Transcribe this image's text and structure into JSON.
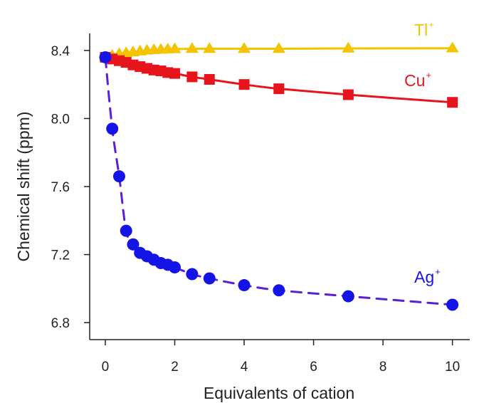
{
  "chart_data": {
    "type": "scatter",
    "title": "",
    "xlabel": "Equivalents of cation",
    "ylabel": "Chemical shift (ppm)",
    "xlim": [
      -0.45,
      10.5
    ],
    "ylim": [
      6.7,
      8.5
    ],
    "xticks": [
      0,
      2,
      4,
      6,
      8,
      10
    ],
    "yticks": [
      6.8,
      7.2,
      7.6,
      8.0,
      8.4
    ],
    "xtick_labels": [
      "0",
      "2",
      "4",
      "6",
      "8",
      "10"
    ],
    "ytick_labels": [
      "6.8",
      "7.2",
      "7.6",
      "8.0",
      "8.4"
    ],
    "grid": false,
    "legend": "none (inline series labels at right)",
    "series": [
      {
        "name": "Tl",
        "charge": "+",
        "marker": "triangle",
        "line": "solid",
        "color": "#F5C400",
        "x": [
          0,
          0.2,
          0.4,
          0.6,
          0.8,
          1.0,
          1.2,
          1.4,
          1.6,
          1.8,
          2.0,
          2.5,
          3.0,
          4.0,
          5.0,
          7.0,
          10.0
        ],
        "y": [
          8.36,
          8.37,
          8.38,
          8.385,
          8.39,
          8.395,
          8.4,
          8.403,
          8.405,
          8.407,
          8.408,
          8.41,
          8.41,
          8.41,
          8.41,
          8.412,
          8.413
        ]
      },
      {
        "name": "Cu",
        "charge": "+",
        "marker": "square",
        "line": "solid",
        "color": "#E8141C",
        "x": [
          0,
          0.2,
          0.4,
          0.6,
          0.8,
          1.0,
          1.2,
          1.4,
          1.6,
          1.8,
          2.0,
          2.5,
          3.0,
          4.0,
          5.0,
          7.0,
          10.0
        ],
        "y": [
          8.36,
          8.35,
          8.34,
          8.33,
          8.315,
          8.305,
          8.295,
          8.285,
          8.28,
          8.27,
          8.265,
          8.245,
          8.23,
          8.2,
          8.175,
          8.14,
          8.095
        ]
      },
      {
        "name": "Ag",
        "charge": "+",
        "marker": "circle",
        "line": "dashed",
        "color": "#1414E6",
        "line_color": "#5A1FD6",
        "x": [
          0,
          0.2,
          0.4,
          0.6,
          0.8,
          1.0,
          1.2,
          1.4,
          1.6,
          1.8,
          2.0,
          2.5,
          3.0,
          4.0,
          5.0,
          7.0,
          10.0
        ],
        "y": [
          8.36,
          7.94,
          7.66,
          7.34,
          7.26,
          7.21,
          7.19,
          7.17,
          7.15,
          7.14,
          7.125,
          7.085,
          7.06,
          7.02,
          6.99,
          6.955,
          6.905
        ]
      }
    ]
  }
}
